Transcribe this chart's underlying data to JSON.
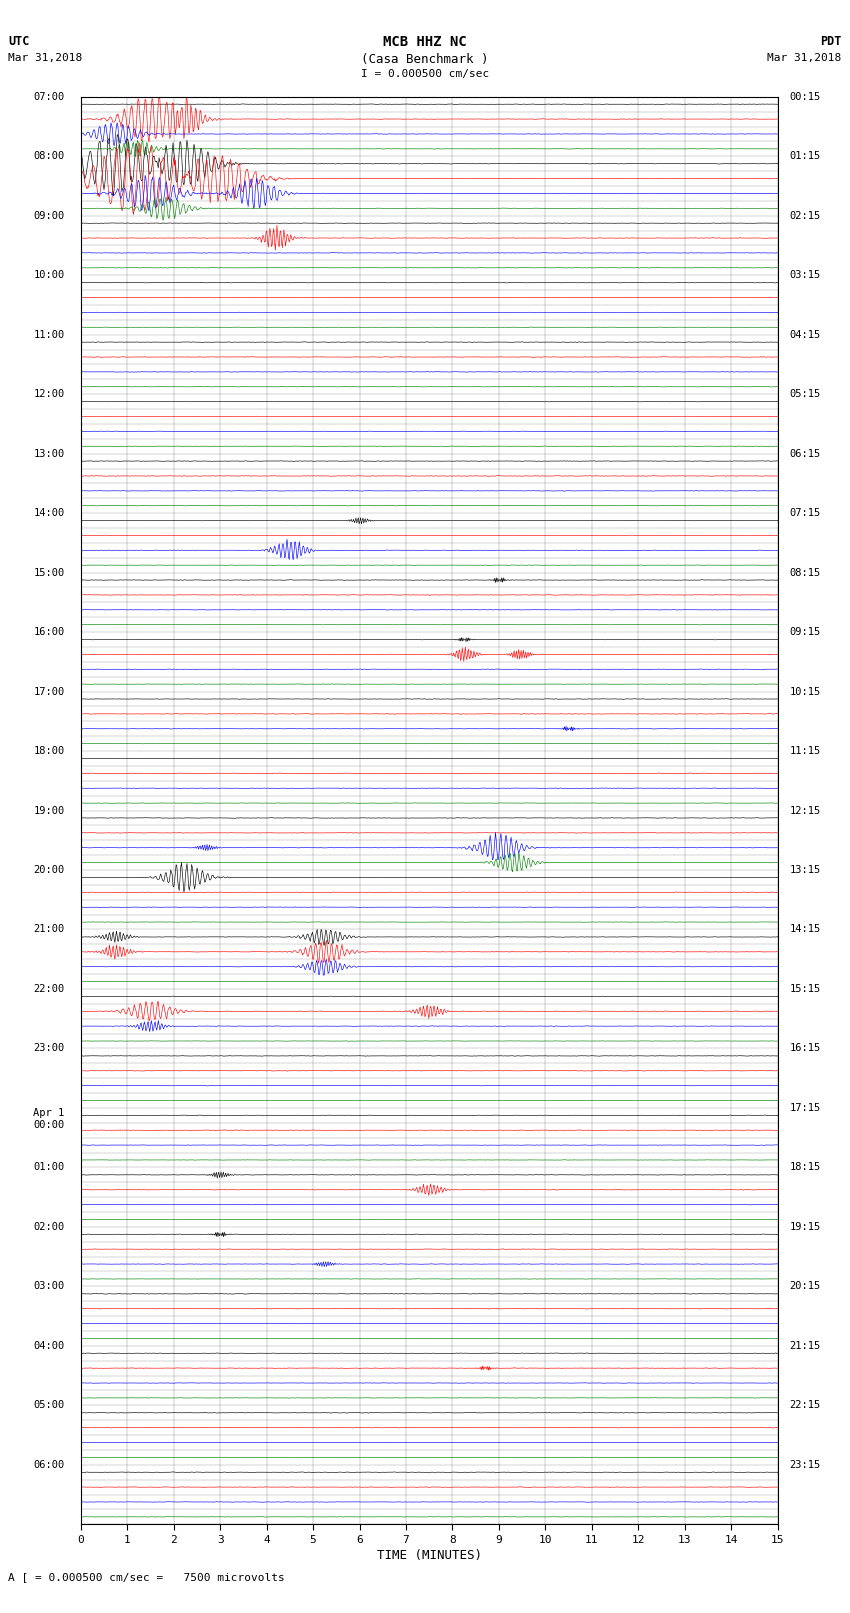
{
  "title_line1": "MCB HHZ NC",
  "title_line2": "(Casa Benchmark )",
  "scale_label": "I = 0.000500 cm/sec",
  "left_label_line1": "UTC",
  "left_label_line2": "Mar 31,2018",
  "right_label_line1": "PDT",
  "right_label_line2": "Mar 31,2018",
  "bottom_label": "A [ = 0.000500 cm/sec =   7500 microvolts",
  "xlabel": "TIME (MINUTES)",
  "utc_hour_labels": [
    "07:00",
    "08:00",
    "09:00",
    "10:00",
    "11:00",
    "12:00",
    "13:00",
    "14:00",
    "15:00",
    "16:00",
    "17:00",
    "18:00",
    "19:00",
    "20:00",
    "21:00",
    "22:00",
    "23:00",
    "Apr 1\n00:00",
    "01:00",
    "02:00",
    "03:00",
    "04:00",
    "05:00",
    "06:00"
  ],
  "pdt_hour_labels": [
    "00:15",
    "01:15",
    "02:15",
    "03:15",
    "04:15",
    "05:15",
    "06:15",
    "07:15",
    "08:15",
    "09:15",
    "10:15",
    "11:15",
    "12:15",
    "13:15",
    "14:15",
    "15:15",
    "16:15",
    "17:15",
    "18:15",
    "19:15",
    "20:15",
    "21:15",
    "22:15",
    "23:15"
  ],
  "row_colors": [
    "black",
    "red",
    "blue",
    "green"
  ],
  "n_hours": 24,
  "traces_per_hour": 4,
  "bg_color": "white"
}
